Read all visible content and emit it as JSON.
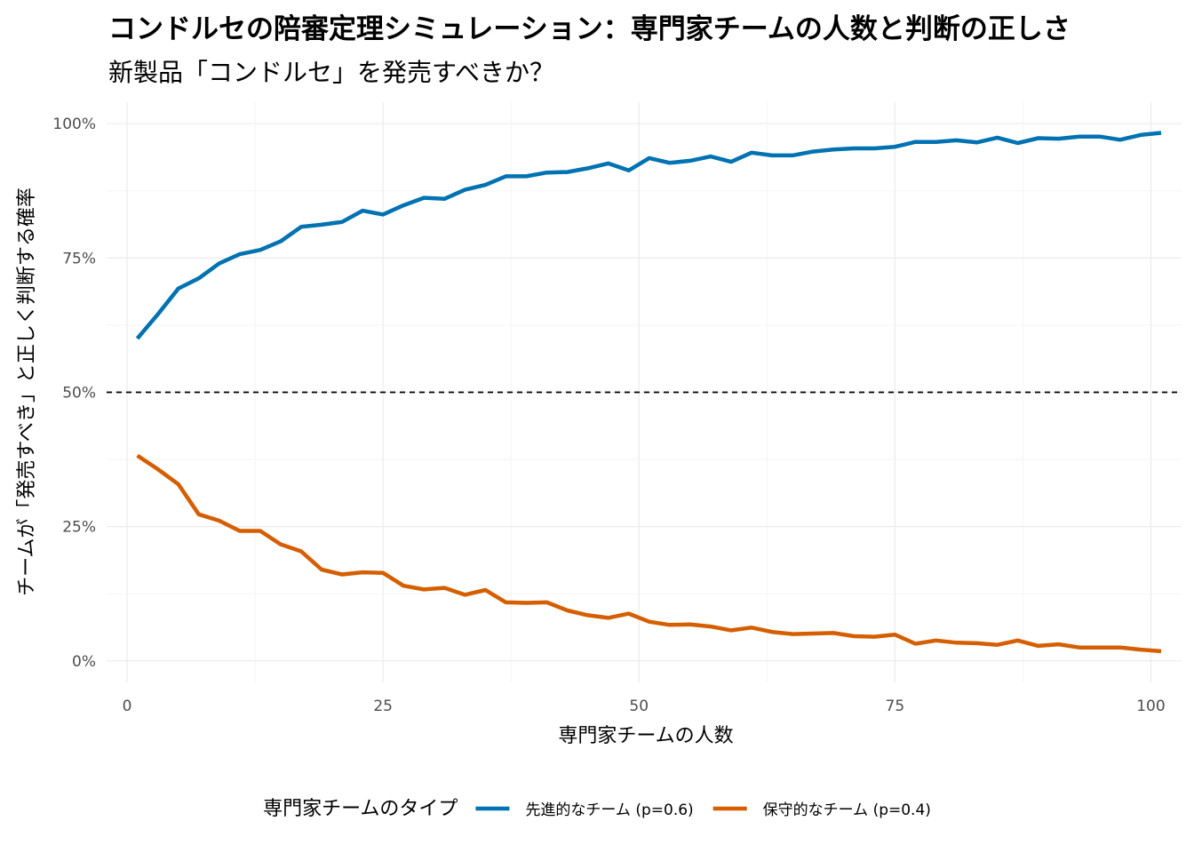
{
  "chart_data": {
    "type": "line",
    "title": "コンドルセの陪審定理シミュレーション：専門家チームの人数と判断の正しさ",
    "subtitle": "新製品「コンドルセ」を発売すべきか？",
    "xlabel": "専門家チームの人数",
    "ylabel": "チームが「発売すべき」と正しく判断する確率",
    "xlim": [
      -2,
      103
    ],
    "ylim": [
      -0.04,
      1.04
    ],
    "x_ticks": [
      0,
      25,
      50,
      75,
      100
    ],
    "x_tick_labels": [
      "0",
      "25",
      "50",
      "75",
      "100"
    ],
    "y_ticks": [
      0,
      0.25,
      0.5,
      0.75,
      1.0
    ],
    "y_tick_labels": [
      "0%",
      "25%",
      "50%",
      "75%",
      "100%"
    ],
    "grid": true,
    "reference_line": {
      "y": 0.5,
      "style": "dashed"
    },
    "legend": {
      "title": "専門家チームのタイプ",
      "position": "bottom"
    },
    "series": [
      {
        "name": "先進的なチーム (p=0.6)",
        "color": "#0072B2",
        "x": [
          1,
          3,
          5,
          7,
          9,
          11,
          13,
          15,
          17,
          19,
          21,
          23,
          25,
          27,
          29,
          31,
          33,
          35,
          37,
          39,
          41,
          43,
          45,
          47,
          49,
          51,
          53,
          55,
          57,
          59,
          61,
          63,
          65,
          67,
          69,
          71,
          73,
          75,
          77,
          79,
          81,
          83,
          85,
          87,
          89,
          91,
          93,
          95,
          97,
          99,
          101
        ],
        "y": [
          0.6,
          0.645,
          0.693,
          0.712,
          0.74,
          0.757,
          0.765,
          0.781,
          0.808,
          0.812,
          0.817,
          0.838,
          0.831,
          0.848,
          0.862,
          0.86,
          0.877,
          0.886,
          0.902,
          0.902,
          0.909,
          0.91,
          0.917,
          0.926,
          0.913,
          0.936,
          0.927,
          0.931,
          0.939,
          0.929,
          0.946,
          0.941,
          0.941,
          0.948,
          0.952,
          0.954,
          0.954,
          0.957,
          0.966,
          0.966,
          0.969,
          0.965,
          0.974,
          0.964,
          0.973,
          0.972,
          0.976,
          0.976,
          0.97,
          0.979,
          0.983
        ]
      },
      {
        "name": "保守的なチーム (p=0.4)",
        "color": "#D55E00",
        "x": [
          1,
          3,
          5,
          7,
          9,
          11,
          13,
          15,
          17,
          19,
          21,
          23,
          25,
          27,
          29,
          31,
          33,
          35,
          37,
          39,
          41,
          43,
          45,
          47,
          49,
          51,
          53,
          55,
          57,
          59,
          61,
          63,
          65,
          67,
          69,
          71,
          73,
          75,
          77,
          79,
          81,
          83,
          85,
          87,
          89,
          91,
          93,
          95,
          97,
          99,
          101
        ],
        "y": [
          0.382,
          0.357,
          0.329,
          0.273,
          0.261,
          0.242,
          0.242,
          0.217,
          0.204,
          0.17,
          0.161,
          0.165,
          0.164,
          0.14,
          0.133,
          0.136,
          0.123,
          0.132,
          0.109,
          0.108,
          0.109,
          0.094,
          0.085,
          0.08,
          0.088,
          0.073,
          0.067,
          0.068,
          0.064,
          0.057,
          0.062,
          0.054,
          0.05,
          0.051,
          0.052,
          0.046,
          0.045,
          0.049,
          0.032,
          0.038,
          0.034,
          0.033,
          0.03,
          0.038,
          0.028,
          0.031,
          0.025,
          0.025,
          0.025,
          0.021,
          0.018
        ]
      }
    ]
  }
}
